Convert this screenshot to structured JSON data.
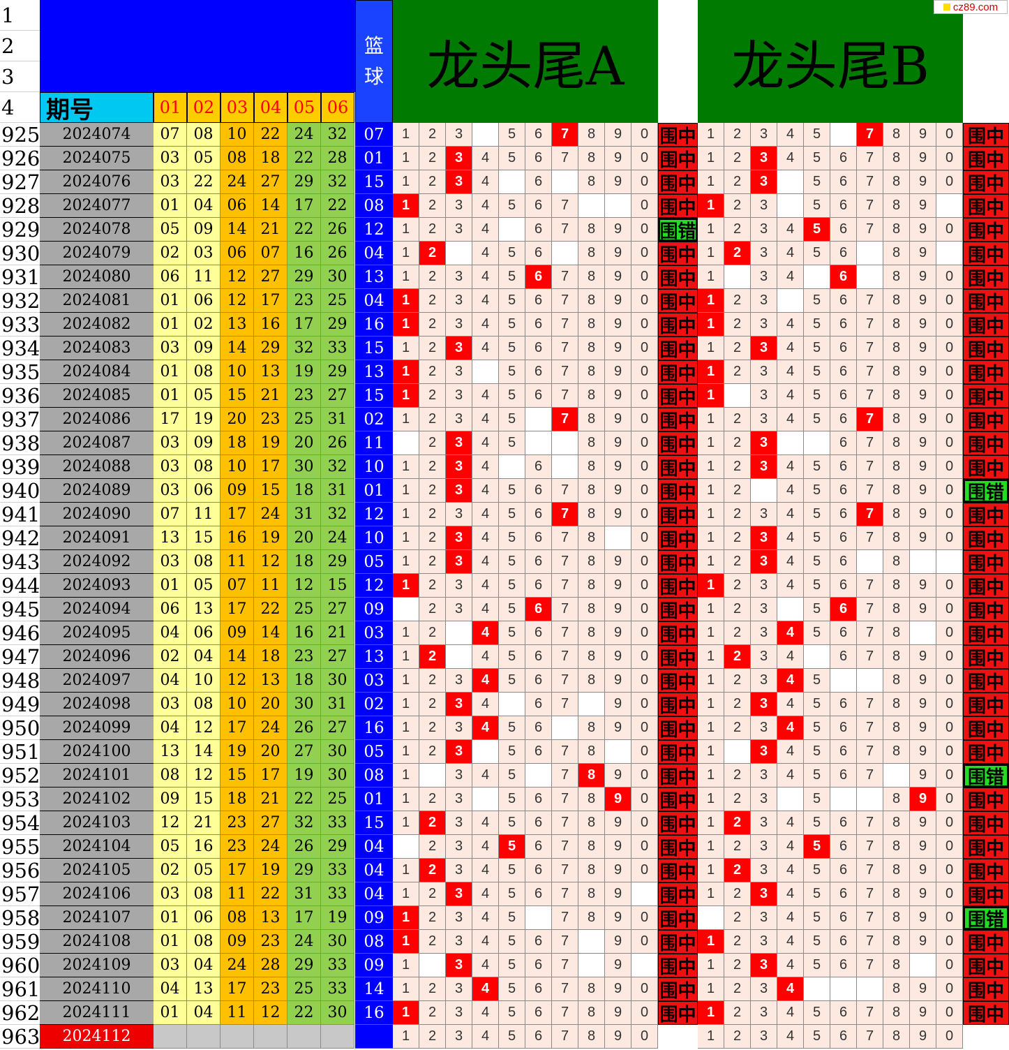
{
  "header": {
    "row_labels": [
      "1",
      "2",
      "3",
      "4"
    ],
    "basketball": "篮球",
    "period_label": "期号",
    "positions": [
      "01",
      "02",
      "03",
      "04",
      "05",
      "06"
    ],
    "section_a": "龙头尾A",
    "section_b": "龙头尾B"
  },
  "watermark": "cz89.com",
  "result_labels": {
    "hit": "围中",
    "miss": "围错"
  },
  "colors": {
    "blue_header": "#0000ff",
    "green_header": "#007a00",
    "cyan": "#00c8f0",
    "hit_red": "#ff0000",
    "miss_green": "#22dd22",
    "zone_low": "#ffff99",
    "zone_mid": "#ffc000",
    "zone_high": "#92d050"
  },
  "rows": [
    {
      "row": "925",
      "period": "2024074",
      "nums": [
        "07",
        "08",
        "10",
        "22",
        "24",
        "32"
      ],
      "blue": "07",
      "a": "1110111111",
      "ah": 7,
      "ar": "hit",
      "b": "1111101111",
      "bh": 7,
      "br": "hit"
    },
    {
      "row": "926",
      "period": "2024075",
      "nums": [
        "03",
        "05",
        "08",
        "18",
        "22",
        "28"
      ],
      "blue": "01",
      "a": "1111111111",
      "ah": 3,
      "ar": "hit",
      "b": "1111111111",
      "bh": 3,
      "br": "hit"
    },
    {
      "row": "927",
      "period": "2024076",
      "nums": [
        "03",
        "22",
        "24",
        "27",
        "29",
        "32"
      ],
      "blue": "15",
      "a": "1111010111",
      "ah": 3,
      "ar": "hit",
      "b": "1110111111",
      "bh": 3,
      "br": "hit"
    },
    {
      "row": "928",
      "period": "2024077",
      "nums": [
        "01",
        "04",
        "06",
        "14",
        "17",
        "22"
      ],
      "blue": "08",
      "a": "1111111001",
      "ah": 1,
      "ar": "hit",
      "b": "1110111110",
      "bh": 1,
      "br": "hit"
    },
    {
      "row": "929",
      "period": "2024078",
      "nums": [
        "05",
        "09",
        "14",
        "21",
        "22",
        "26"
      ],
      "blue": "12",
      "a": "1111011111",
      "ah": 0,
      "ar": "miss",
      "b": "1111111111",
      "bh": 5,
      "br": "hit"
    },
    {
      "row": "930",
      "period": "2024079",
      "nums": [
        "02",
        "03",
        "06",
        "07",
        "16",
        "26"
      ],
      "blue": "04",
      "a": "1101110111",
      "ah": 2,
      "ar": "hit",
      "b": "1111110110",
      "bh": 2,
      "br": "hit"
    },
    {
      "row": "931",
      "period": "2024080",
      "nums": [
        "06",
        "11",
        "12",
        "27",
        "29",
        "30"
      ],
      "blue": "13",
      "a": "1111111111",
      "ah": 6,
      "ar": "hit",
      "b": "1011010111",
      "bh": 6,
      "br": "hit"
    },
    {
      "row": "932",
      "period": "2024081",
      "nums": [
        "01",
        "06",
        "12",
        "17",
        "23",
        "25"
      ],
      "blue": "04",
      "a": "1111111111",
      "ah": 1,
      "ar": "hit",
      "b": "1110111111",
      "bh": 1,
      "br": "hit"
    },
    {
      "row": "933",
      "period": "2024082",
      "nums": [
        "01",
        "02",
        "13",
        "16",
        "17",
        "29"
      ],
      "blue": "16",
      "a": "1111111111",
      "ah": 1,
      "ar": "hit",
      "b": "1111111111",
      "bh": 1,
      "br": "hit"
    },
    {
      "row": "934",
      "period": "2024083",
      "nums": [
        "03",
        "09",
        "14",
        "29",
        "32",
        "33"
      ],
      "blue": "15",
      "a": "1111111111",
      "ah": 3,
      "ar": "hit",
      "b": "1111111111",
      "bh": 3,
      "br": "hit"
    },
    {
      "row": "935",
      "period": "2024084",
      "nums": [
        "01",
        "08",
        "10",
        "13",
        "19",
        "29"
      ],
      "blue": "13",
      "a": "1110111111",
      "ah": 1,
      "ar": "hit",
      "b": "1111111111",
      "bh": 1,
      "br": "hit"
    },
    {
      "row": "936",
      "period": "2024085",
      "nums": [
        "01",
        "05",
        "15",
        "21",
        "23",
        "27"
      ],
      "blue": "15",
      "a": "1111111111",
      "ah": 1,
      "ar": "hit",
      "b": "1011111111",
      "bh": 1,
      "br": "hit"
    },
    {
      "row": "937",
      "period": "2024086",
      "nums": [
        "17",
        "19",
        "20",
        "23",
        "25",
        "31"
      ],
      "blue": "02",
      "a": "1111101111",
      "ah": 7,
      "ar": "hit",
      "b": "1111111111",
      "bh": 7,
      "br": "hit"
    },
    {
      "row": "938",
      "period": "2024087",
      "nums": [
        "03",
        "09",
        "18",
        "19",
        "20",
        "26"
      ],
      "blue": "11",
      "a": "0111100111",
      "ah": 3,
      "ar": "hit",
      "b": "1110011111",
      "bh": 3,
      "br": "hit"
    },
    {
      "row": "939",
      "period": "2024088",
      "nums": [
        "03",
        "08",
        "10",
        "17",
        "30",
        "32"
      ],
      "blue": "10",
      "a": "1111010111",
      "ah": 3,
      "ar": "hit",
      "b": "1111111111",
      "bh": 3,
      "br": "hit"
    },
    {
      "row": "940",
      "period": "2024089",
      "nums": [
        "03",
        "06",
        "09",
        "15",
        "18",
        "31"
      ],
      "blue": "01",
      "a": "1111111111",
      "ah": 3,
      "ar": "hit",
      "b": "1101111111",
      "bh": 0,
      "br": "miss"
    },
    {
      "row": "941",
      "period": "2024090",
      "nums": [
        "07",
        "11",
        "17",
        "24",
        "31",
        "32"
      ],
      "blue": "12",
      "a": "1111111111",
      "ah": 7,
      "ar": "hit",
      "b": "1111111111",
      "bh": 7,
      "br": "hit"
    },
    {
      "row": "942",
      "period": "2024091",
      "nums": [
        "13",
        "15",
        "16",
        "19",
        "20",
        "24"
      ],
      "blue": "10",
      "a": "1111111101",
      "ah": 3,
      "ar": "hit",
      "b": "1111111111",
      "bh": 3,
      "br": "hit"
    },
    {
      "row": "943",
      "period": "2024092",
      "nums": [
        "03",
        "08",
        "11",
        "12",
        "18",
        "29"
      ],
      "blue": "05",
      "a": "1111111111",
      "ah": 3,
      "ar": "hit",
      "b": "1111110100",
      "bh": 3,
      "br": "hit"
    },
    {
      "row": "944",
      "period": "2024093",
      "nums": [
        "01",
        "05",
        "07",
        "11",
        "12",
        "15"
      ],
      "blue": "12",
      "a": "1111111111",
      "ah": 1,
      "ar": "hit",
      "b": "1111111111",
      "bh": 1,
      "br": "hit"
    },
    {
      "row": "945",
      "period": "2024094",
      "nums": [
        "06",
        "13",
        "17",
        "22",
        "25",
        "27"
      ],
      "blue": "09",
      "a": "0111111111",
      "ah": 6,
      "ar": "hit",
      "b": "1110111111",
      "bh": 6,
      "br": "hit"
    },
    {
      "row": "946",
      "period": "2024095",
      "nums": [
        "04",
        "06",
        "09",
        "14",
        "16",
        "21"
      ],
      "blue": "03",
      "a": "1101111111",
      "ah": 4,
      "ar": "hit",
      "b": "1111111101",
      "bh": 4,
      "br": "hit"
    },
    {
      "row": "947",
      "period": "2024096",
      "nums": [
        "02",
        "04",
        "14",
        "18",
        "23",
        "27"
      ],
      "blue": "13",
      "a": "1101111111",
      "ah": 2,
      "ar": "hit",
      "b": "1111011111",
      "bh": 2,
      "br": "hit"
    },
    {
      "row": "948",
      "period": "2024097",
      "nums": [
        "04",
        "10",
        "12",
        "13",
        "18",
        "30"
      ],
      "blue": "03",
      "a": "1111111111",
      "ah": 4,
      "ar": "hit",
      "b": "1111100111",
      "bh": 4,
      "br": "hit"
    },
    {
      "row": "949",
      "period": "2024098",
      "nums": [
        "03",
        "08",
        "10",
        "20",
        "30",
        "31"
      ],
      "blue": "02",
      "a": "1111011011",
      "ah": 3,
      "ar": "hit",
      "b": "1111111111",
      "bh": 3,
      "br": "hit"
    },
    {
      "row": "950",
      "period": "2024099",
      "nums": [
        "04",
        "12",
        "17",
        "24",
        "26",
        "27"
      ],
      "blue": "16",
      "a": "1111110111",
      "ah": 4,
      "ar": "hit",
      "b": "1111111111",
      "bh": 4,
      "br": "hit"
    },
    {
      "row": "951",
      "period": "2024100",
      "nums": [
        "13",
        "14",
        "19",
        "20",
        "27",
        "30"
      ],
      "blue": "05",
      "a": "1110111101",
      "ah": 3,
      "ar": "hit",
      "b": "1011111111",
      "bh": 3,
      "br": "hit"
    },
    {
      "row": "952",
      "period": "2024101",
      "nums": [
        "08",
        "12",
        "15",
        "17",
        "19",
        "30"
      ],
      "blue": "08",
      "a": "1011101111",
      "ah": 8,
      "ar": "hit",
      "b": "1111111011",
      "bh": 0,
      "br": "miss"
    },
    {
      "row": "953",
      "period": "2024102",
      "nums": [
        "09",
        "15",
        "18",
        "21",
        "22",
        "25"
      ],
      "blue": "01",
      "a": "1110111111",
      "ah": 9,
      "ar": "hit",
      "b": "1110100111",
      "bh": 9,
      "br": "hit"
    },
    {
      "row": "954",
      "period": "2024103",
      "nums": [
        "12",
        "21",
        "23",
        "27",
        "32",
        "33"
      ],
      "blue": "15",
      "a": "1111111111",
      "ah": 2,
      "ar": "hit",
      "b": "1111111111",
      "bh": 2,
      "br": "hit"
    },
    {
      "row": "955",
      "period": "2024104",
      "nums": [
        "05",
        "16",
        "23",
        "24",
        "26",
        "29"
      ],
      "blue": "04",
      "a": "0111111111",
      "ah": 5,
      "ar": "hit",
      "b": "1111111111",
      "bh": 5,
      "br": "hit"
    },
    {
      "row": "956",
      "period": "2024105",
      "nums": [
        "02",
        "05",
        "17",
        "19",
        "29",
        "33"
      ],
      "blue": "04",
      "a": "1111111111",
      "ah": 2,
      "ar": "hit",
      "b": "1111111111",
      "bh": 2,
      "br": "hit"
    },
    {
      "row": "957",
      "period": "2024106",
      "nums": [
        "03",
        "08",
        "11",
        "22",
        "31",
        "33"
      ],
      "blue": "04",
      "a": "1111111110",
      "ah": 3,
      "ar": "hit",
      "b": "1111111111",
      "bh": 3,
      "br": "hit"
    },
    {
      "row": "958",
      "period": "2024107",
      "nums": [
        "01",
        "06",
        "08",
        "13",
        "17",
        "19"
      ],
      "blue": "09",
      "a": "1111101111",
      "ah": 1,
      "ar": "hit",
      "b": "0111111111",
      "bh": 0,
      "br": "miss"
    },
    {
      "row": "959",
      "period": "2024108",
      "nums": [
        "01",
        "08",
        "09",
        "23",
        "24",
        "30"
      ],
      "blue": "08",
      "a": "1111111011",
      "ah": 1,
      "ar": "hit",
      "b": "1111111111",
      "bh": 1,
      "br": "hit"
    },
    {
      "row": "960",
      "period": "2024109",
      "nums": [
        "03",
        "04",
        "24",
        "28",
        "29",
        "33"
      ],
      "blue": "09",
      "a": "1011111010",
      "ah": 3,
      "ar": "hit",
      "b": "1111111101",
      "bh": 3,
      "br": "hit"
    },
    {
      "row": "961",
      "period": "2024110",
      "nums": [
        "04",
        "13",
        "17",
        "23",
        "25",
        "33"
      ],
      "blue": "14",
      "a": "1111111111",
      "ah": 4,
      "ar": "hit",
      "b": "1111000111",
      "bh": 4,
      "br": "hit"
    },
    {
      "row": "962",
      "period": "2024111",
      "nums": [
        "01",
        "04",
        "11",
        "12",
        "22",
        "30"
      ],
      "blue": "16",
      "a": "1111111111",
      "ah": 1,
      "ar": "hit",
      "b": "1111111111",
      "bh": 1,
      "br": "hit"
    },
    {
      "row": "963",
      "period": "2024112",
      "nums": [
        "",
        "",
        "",
        "",
        "",
        ""
      ],
      "blue": "",
      "a": "1111111111",
      "ah": 0,
      "ar": "none",
      "b": "1111111111",
      "bh": 0,
      "br": "none",
      "current": true
    }
  ]
}
